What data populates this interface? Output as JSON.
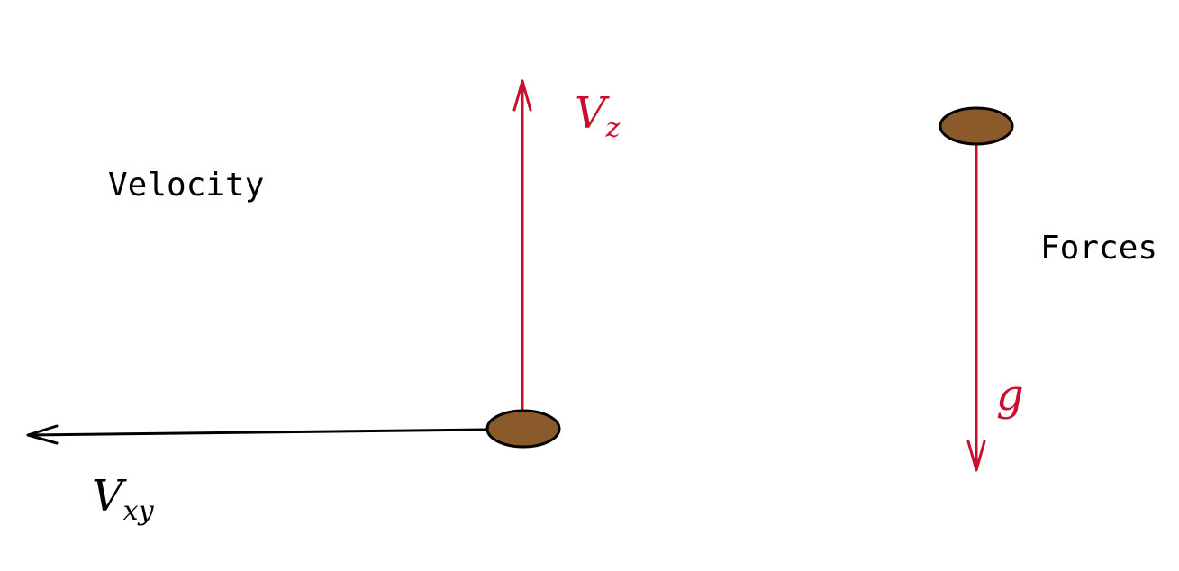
{
  "labels": {
    "velocity": "Velocity",
    "forces": "Forces"
  },
  "vectors": {
    "vz": {
      "symbol": "V",
      "subscript": "z"
    },
    "vxy": {
      "symbol": "V",
      "subscript": "xy"
    },
    "g": {
      "symbol": "g"
    }
  },
  "colors": {
    "red": "#c8102e",
    "black": "#000000",
    "ball": "#8b5a2b"
  }
}
